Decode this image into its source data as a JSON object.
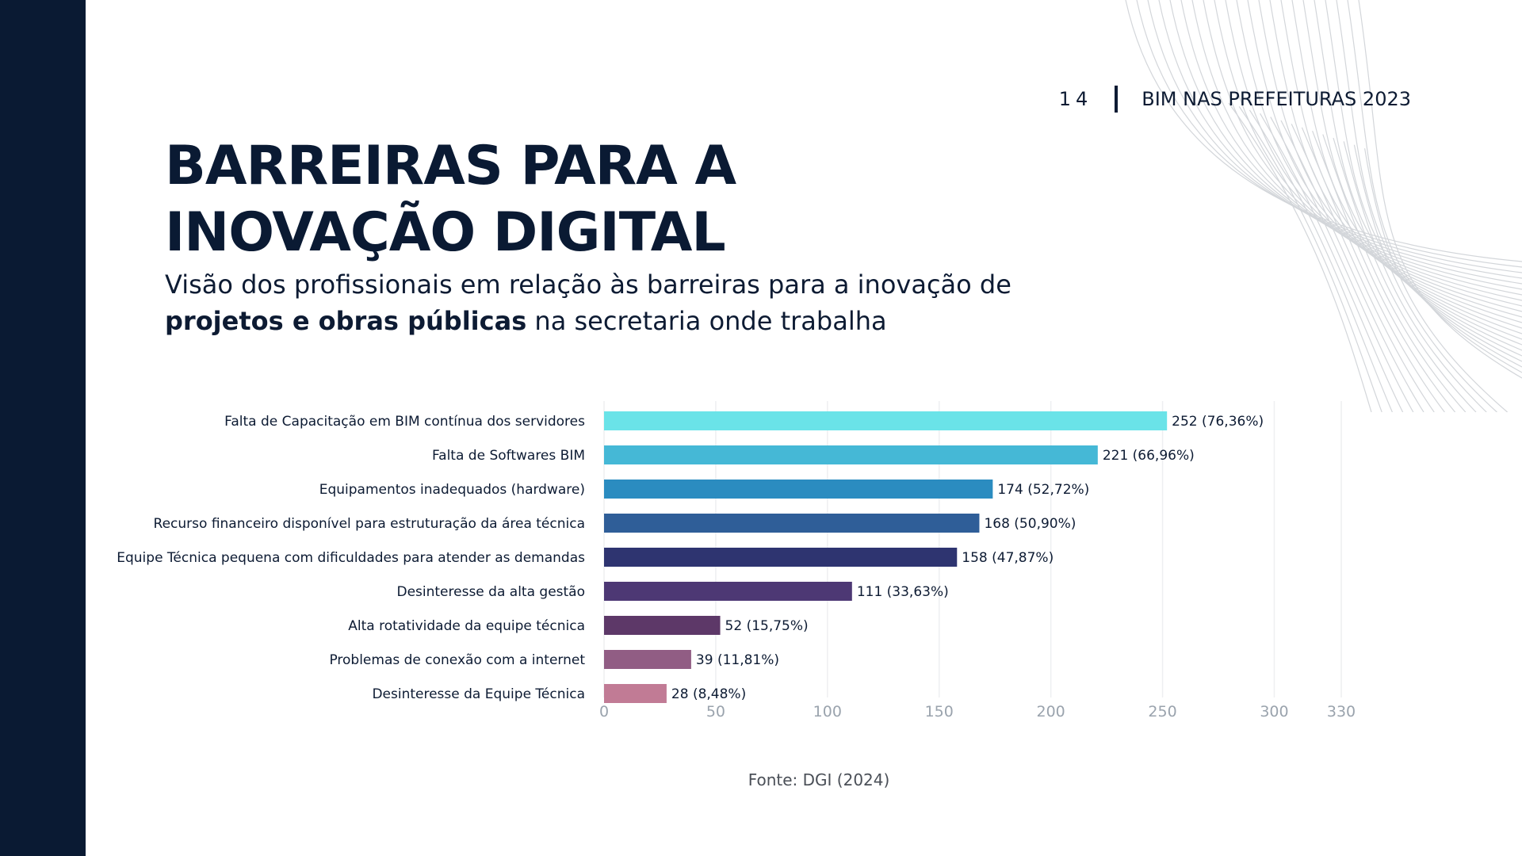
{
  "header": {
    "page_number": "14",
    "doc_title": "BIM NAS PREFEITURAS 2023"
  },
  "title_line1": "BARREIRAS PARA A",
  "title_line2": "INOVAÇÃO DIGITAL",
  "subtitle": {
    "part1": "Visão dos profissionais em relação às  barreiras para a inovação de",
    "bold": "projetos e obras públicas",
    "part2": " na secretaria onde trabalha"
  },
  "source": "Fonte: DGI (2024)",
  "chart_data": {
    "type": "bar",
    "orientation": "horizontal",
    "categories": [
      "Falta de Capacitação em BIM contínua dos servidores",
      "Falta de Softwares BIM",
      "Equipamentos inadequados (hardware)",
      "Recurso financeiro disponível para estruturação da área técnica",
      "Equipe Técnica pequena com dificuldades para atender as demandas",
      "Desinteresse da alta gestão",
      "Alta rotatividade da equipe técnica",
      "Problemas de conexão com a internet",
      "Desinteresse da Equipe Técnica"
    ],
    "values": [
      252,
      221,
      174,
      168,
      158,
      111,
      52,
      39,
      28
    ],
    "data_labels": [
      "252 (76,36%)",
      "221 (66,96%)",
      "174 (52,72%)",
      "168 (50,90%)",
      "158 (47,87%)",
      "111 (33,63%)",
      "52 (15,75%)",
      "39 (11,81%)",
      "28 (8,48%)"
    ],
    "colors": [
      "#6ae3e8",
      "#45b8d6",
      "#2b8cc0",
      "#2f5e98",
      "#2e3470",
      "#4d3874",
      "#5d3868",
      "#915d84",
      "#c17b95"
    ],
    "xticks": [
      "0",
      "50",
      "100",
      "150",
      "200",
      "250",
      "300",
      "330"
    ],
    "xtick_values": [
      0,
      50,
      100,
      150,
      200,
      250,
      300,
      330
    ],
    "xlim": [
      0,
      330
    ],
    "grid": true
  }
}
